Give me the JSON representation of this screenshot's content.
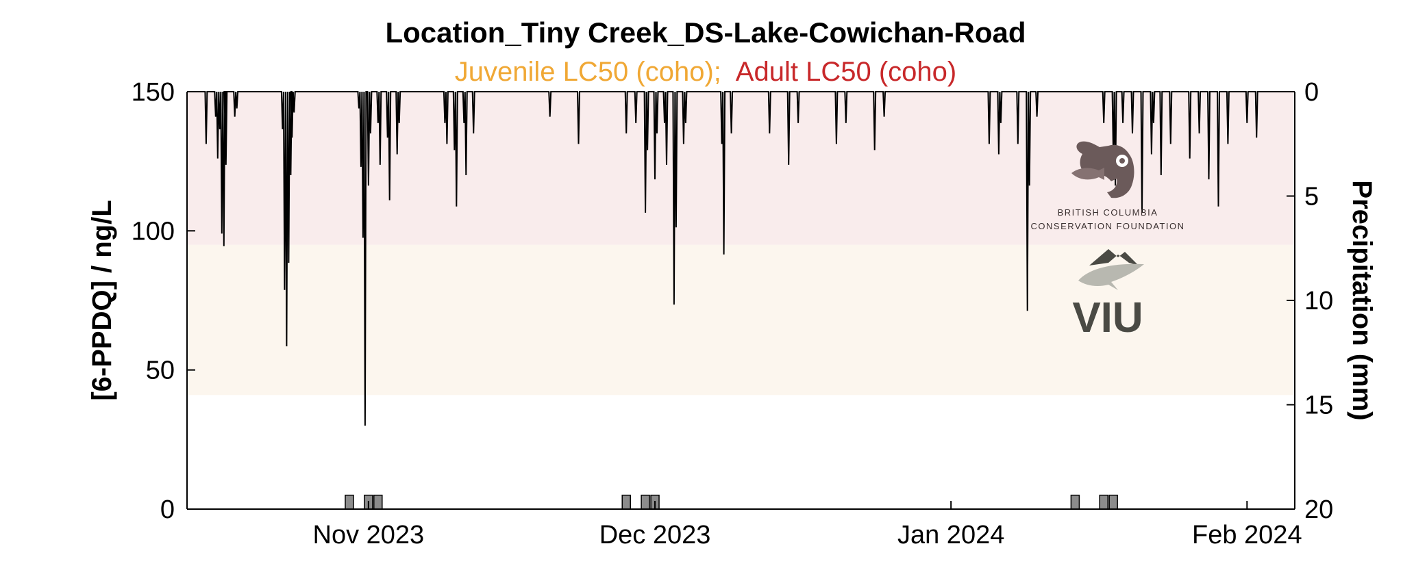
{
  "chart_data": {
    "type": "line",
    "title": "Location_Tiny Creek_DS-Lake-Cowichan-Road",
    "subtitle": {
      "juvenile": "Juvenile LC50 (coho);",
      "adult": "Adult LC50 (coho)",
      "juvenile_color": "#f0a835",
      "adult_color": "#c8282a"
    },
    "ylabel": "[6-PPDQ] / ng/L",
    "y2label": "Precipitation (mm)",
    "xlim": [
      "2023-10-13",
      "2024-02-06"
    ],
    "ylim": [
      0,
      150
    ],
    "y2lim": [
      0,
      20
    ],
    "y2_reversed": true,
    "xticks": [
      {
        "date": "2023-11-01",
        "label": "Nov 2023"
      },
      {
        "date": "2023-12-01",
        "label": "Dec 2023"
      },
      {
        "date": "2024-01-01",
        "label": "Jan 2024"
      },
      {
        "date": "2024-02-01",
        "label": "Feb 2024"
      }
    ],
    "yticks": [
      0,
      50,
      100,
      150
    ],
    "y2ticks": [
      0,
      5,
      10,
      15,
      20
    ],
    "bands": [
      {
        "name": "Juvenile LC50 (coho)",
        "from": 41,
        "to": 95,
        "color": "#fcf6ee"
      },
      {
        "name": "Adult LC50 (coho)",
        "from": 95,
        "to": 150,
        "color": "#f9ecec"
      }
    ],
    "grid": false,
    "series": [
      {
        "kind": "precipitation_spikes",
        "axis": "right",
        "color": "#000000",
        "events": [
          {
            "date": "2023-10-15",
            "value": 2.5
          },
          {
            "date": "2023-10-16",
            "value": 1.2
          },
          {
            "date": "2023-10-16",
            "value": 3.2
          },
          {
            "date": "2023-10-16",
            "value": 1.8
          },
          {
            "date": "2023-10-16",
            "value": 6.8
          },
          {
            "date": "2023-10-16",
            "value": 7.4
          },
          {
            "date": "2023-10-16",
            "value": 3.5
          },
          {
            "date": "2023-10-17",
            "value": 2.0
          },
          {
            "date": "2023-10-18",
            "value": 1.2
          },
          {
            "date": "2023-10-18",
            "value": 0.8
          },
          {
            "date": "2023-10-23",
            "value": 1.8
          },
          {
            "date": "2023-10-23",
            "value": 9.5
          },
          {
            "date": "2023-10-23",
            "value": 12.2
          },
          {
            "date": "2023-10-23",
            "value": 8.2
          },
          {
            "date": "2023-10-23",
            "value": 4.0
          },
          {
            "date": "2023-10-24",
            "value": 2.2
          },
          {
            "date": "2023-10-24",
            "value": 1.0
          },
          {
            "date": "2023-10-31",
            "value": 0.8
          },
          {
            "date": "2023-10-31",
            "value": 3.6
          },
          {
            "date": "2023-10-31",
            "value": 7.0
          },
          {
            "date": "2023-10-31",
            "value": 16.0
          },
          {
            "date": "2023-11-01",
            "value": 4.5
          },
          {
            "date": "2023-11-01",
            "value": 2.0
          },
          {
            "date": "2023-11-02",
            "value": 1.5
          },
          {
            "date": "2023-11-02",
            "value": 3.5
          },
          {
            "date": "2023-11-03",
            "value": 2.2
          },
          {
            "date": "2023-11-03",
            "value": 5.2
          },
          {
            "date": "2023-11-04",
            "value": 3.0
          },
          {
            "date": "2023-11-04",
            "value": 1.5
          },
          {
            "date": "2023-11-09",
            "value": 1.5
          },
          {
            "date": "2023-11-09",
            "value": 2.5
          },
          {
            "date": "2023-11-10",
            "value": 2.8
          },
          {
            "date": "2023-11-10",
            "value": 5.5
          },
          {
            "date": "2023-11-11",
            "value": 1.5
          },
          {
            "date": "2023-11-11",
            "value": 4.0
          },
          {
            "date": "2023-11-12",
            "value": 2.0
          },
          {
            "date": "2023-11-20",
            "value": 1.2
          },
          {
            "date": "2023-11-23",
            "value": 2.5
          },
          {
            "date": "2023-11-28",
            "value": 2.0
          },
          {
            "date": "2023-11-29",
            "value": 1.5
          },
          {
            "date": "2023-11-30",
            "value": 5.8
          },
          {
            "date": "2023-11-30",
            "value": 2.8
          },
          {
            "date": "2023-12-01",
            "value": 4.2
          },
          {
            "date": "2023-12-01",
            "value": 2.0
          },
          {
            "date": "2023-12-02",
            "value": 1.5
          },
          {
            "date": "2023-12-02",
            "value": 3.5
          },
          {
            "date": "2023-12-03",
            "value": 10.2
          },
          {
            "date": "2023-12-03",
            "value": 6.5
          },
          {
            "date": "2023-12-04",
            "value": 2.5
          },
          {
            "date": "2023-12-04",
            "value": 1.5
          },
          {
            "date": "2023-12-08",
            "value": 2.5
          },
          {
            "date": "2023-12-08",
            "value": 7.8
          },
          {
            "date": "2023-12-09",
            "value": 2.0
          },
          {
            "date": "2023-12-13",
            "value": 2.0
          },
          {
            "date": "2023-12-15",
            "value": 3.5
          },
          {
            "date": "2023-12-16",
            "value": 1.5
          },
          {
            "date": "2023-12-20",
            "value": 2.5
          },
          {
            "date": "2023-12-21",
            "value": 1.5
          },
          {
            "date": "2023-12-24",
            "value": 2.8
          },
          {
            "date": "2023-12-25",
            "value": 1.2
          },
          {
            "date": "2024-01-05",
            "value": 2.5
          },
          {
            "date": "2024-01-06",
            "value": 3.0
          },
          {
            "date": "2024-01-06",
            "value": 1.5
          },
          {
            "date": "2024-01-08",
            "value": 2.5
          },
          {
            "date": "2024-01-09",
            "value": 10.5
          },
          {
            "date": "2024-01-09",
            "value": 4.5
          },
          {
            "date": "2024-01-10",
            "value": 1.2
          },
          {
            "date": "2024-01-17",
            "value": 1.5
          },
          {
            "date": "2024-01-18",
            "value": 3.0
          },
          {
            "date": "2024-01-18",
            "value": 4.5
          },
          {
            "date": "2024-01-19",
            "value": 1.5
          },
          {
            "date": "2024-01-20",
            "value": 2.0
          },
          {
            "date": "2024-01-21",
            "value": 5.8
          },
          {
            "date": "2024-01-22",
            "value": 3.0
          },
          {
            "date": "2024-01-22",
            "value": 1.5
          },
          {
            "date": "2024-01-23",
            "value": 4.0
          },
          {
            "date": "2024-01-24",
            "value": 2.5
          },
          {
            "date": "2024-01-26",
            "value": 3.2
          },
          {
            "date": "2024-01-27",
            "value": 2.0
          },
          {
            "date": "2024-01-28",
            "value": 4.2
          },
          {
            "date": "2024-01-29",
            "value": 5.5
          },
          {
            "date": "2024-01-30",
            "value": 2.5
          },
          {
            "date": "2024-02-01",
            "value": 1.5
          },
          {
            "date": "2024-02-02",
            "value": 2.2
          }
        ]
      },
      {
        "kind": "measurements",
        "axis": "left",
        "name": "[6-PPDQ]",
        "color": "#8c8c8c",
        "points": [
          {
            "date": "2023-10-30",
            "value": 5
          },
          {
            "date": "2023-11-01",
            "value": 5
          },
          {
            "date": "2023-11-02",
            "value": 5
          },
          {
            "date": "2023-11-28",
            "value": 5
          },
          {
            "date": "2023-11-30",
            "value": 5
          },
          {
            "date": "2023-12-01",
            "value": 5
          },
          {
            "date": "2024-01-14",
            "value": 5
          },
          {
            "date": "2024-01-17",
            "value": 5
          },
          {
            "date": "2024-01-18",
            "value": 5
          }
        ]
      }
    ]
  },
  "logos": {
    "bccf_line1": "BRITISH COLUMBIA",
    "bccf_line2": "CONSERVATION FOUNDATION",
    "viu": "VIU",
    "bccf_icon": "bear-fish-icon",
    "viu_icon": "mountain-leaf-icon"
  }
}
